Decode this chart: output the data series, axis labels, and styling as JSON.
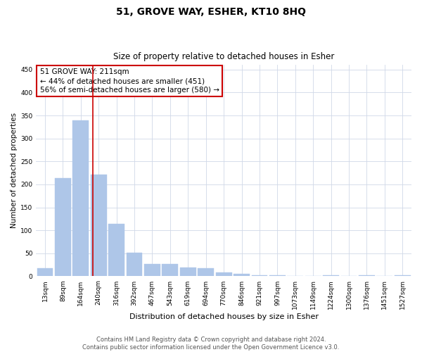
{
  "title": "51, GROVE WAY, ESHER, KT10 8HQ",
  "subtitle": "Size of property relative to detached houses in Esher",
  "xlabel": "Distribution of detached houses by size in Esher",
  "ylabel": "Number of detached properties",
  "categories": [
    "13sqm",
    "89sqm",
    "164sqm",
    "240sqm",
    "316sqm",
    "392sqm",
    "467sqm",
    "543sqm",
    "619sqm",
    "694sqm",
    "770sqm",
    "846sqm",
    "921sqm",
    "997sqm",
    "1073sqm",
    "1149sqm",
    "1224sqm",
    "1300sqm",
    "1376sqm",
    "1451sqm",
    "1527sqm"
  ],
  "values": [
    17,
    214,
    339,
    221,
    114,
    51,
    26,
    26,
    19,
    18,
    8,
    6,
    2,
    2,
    1,
    0,
    3,
    0,
    3,
    1,
    3
  ],
  "bar_color": "#aec6e8",
  "bar_edge_color": "#aec6e8",
  "vline_x_index": 2.67,
  "vline_color": "#cc0000",
  "annotation_line1": "51 GROVE WAY: 211sqm",
  "annotation_line2": "← 44% of detached houses are smaller (451)",
  "annotation_line3": "56% of semi-detached houses are larger (580) →",
  "annotation_box_color": "#cc0000",
  "ylim": [
    0,
    460
  ],
  "yticks": [
    0,
    50,
    100,
    150,
    200,
    250,
    300,
    350,
    400,
    450
  ],
  "footer_line1": "Contains HM Land Registry data © Crown copyright and database right 2024.",
  "footer_line2": "Contains public sector information licensed under the Open Government Licence v3.0.",
  "background_color": "#ffffff",
  "grid_color": "#d0d8e8",
  "fig_width": 6.0,
  "fig_height": 5.0,
  "title_fontsize": 10,
  "subtitle_fontsize": 8.5,
  "xlabel_fontsize": 8,
  "ylabel_fontsize": 7.5,
  "tick_fontsize": 6.5,
  "annotation_fontsize": 7.5,
  "footer_fontsize": 6
}
